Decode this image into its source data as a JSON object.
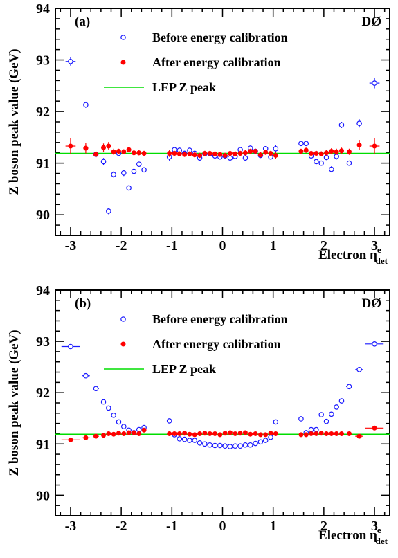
{
  "chart_data": [
    {
      "type": "scatter",
      "panel_label": "(a)",
      "experiment_label": "DØ",
      "xlabel": "Electron η",
      "xlabel_sup": "e",
      "xlabel_sub": "det",
      "ylabel": "Z boson peak value (GeV)",
      "xlim": [
        -3.3,
        3.3
      ],
      "ylim": [
        89.6,
        94
      ],
      "x_ticks": [
        "-3",
        "-2",
        "-1",
        "0",
        "1",
        "2",
        "3"
      ],
      "y_ticks": [
        "90",
        "91",
        "92",
        "93",
        "94"
      ],
      "legend": [
        {
          "label": "Before energy calibration",
          "marker": "open-circle",
          "color": "#1a1aff"
        },
        {
          "label": "After energy calibration",
          "marker": "filled-circle",
          "color": "#ff0000"
        },
        {
          "label": "LEP Z peak",
          "marker": "line",
          "color": "#00dd00"
        }
      ],
      "lep_peak": 91.19,
      "series": [
        {
          "name": "Before energy calibration",
          "color": "#1a1aff",
          "marker": "open",
          "x": [
            -3.0,
            -2.7,
            -2.5,
            -2.35,
            -2.25,
            -2.15,
            -2.05,
            -1.95,
            -1.85,
            -1.75,
            -1.65,
            -1.55,
            -1.05,
            -0.95,
            -0.85,
            -0.75,
            -0.65,
            -0.55,
            -0.45,
            -0.35,
            -0.25,
            -0.15,
            -0.05,
            0.05,
            0.15,
            0.25,
            0.35,
            0.45,
            0.55,
            0.65,
            0.75,
            0.85,
            0.95,
            1.05,
            1.55,
            1.65,
            1.75,
            1.85,
            1.95,
            2.05,
            2.15,
            2.25,
            2.35,
            2.5,
            2.7,
            3.0
          ],
          "y": [
            92.97,
            92.13,
            91.17,
            91.03,
            90.07,
            90.78,
            91.19,
            90.81,
            90.52,
            90.84,
            90.98,
            90.87,
            91.12,
            91.26,
            91.25,
            91.19,
            91.25,
            91.19,
            91.1,
            91.18,
            91.18,
            91.14,
            91.12,
            91.14,
            91.1,
            91.13,
            91.26,
            91.1,
            91.29,
            91.23,
            91.15,
            91.28,
            91.12,
            91.28,
            91.38,
            91.38,
            91.14,
            91.03,
            91.0,
            91.11,
            90.88,
            91.13,
            91.74,
            91.0,
            91.77,
            92.55
          ],
          "err": [
            0.08,
            0.06,
            0.05,
            0.07,
            0.06,
            0.06,
            0.05,
            0.06,
            0.05,
            0.05,
            0.05,
            0.05,
            0.07,
            0.05,
            0.05,
            0.05,
            0.05,
            0.05,
            0.05,
            0.05,
            0.05,
            0.05,
            0.05,
            0.05,
            0.05,
            0.05,
            0.05,
            0.05,
            0.05,
            0.05,
            0.05,
            0.05,
            0.05,
            0.07,
            0.05,
            0.05,
            0.05,
            0.05,
            0.05,
            0.05,
            0.06,
            0.06,
            0.06,
            0.05,
            0.08,
            0.1
          ],
          "xerr": [
            0.1,
            0.05,
            0.05,
            0,
            0,
            0,
            0,
            0,
            0,
            0,
            0,
            0,
            0,
            0,
            0,
            0,
            0,
            0,
            0,
            0,
            0,
            0,
            0,
            0,
            0,
            0,
            0,
            0,
            0,
            0,
            0,
            0,
            0,
            0,
            0,
            0,
            0,
            0,
            0,
            0,
            0,
            0,
            0,
            0.05,
            0.05,
            0.1
          ]
        },
        {
          "name": "After energy calibration",
          "color": "#ff0000",
          "marker": "filled",
          "x": [
            -3.0,
            -2.7,
            -2.5,
            -2.35,
            -2.25,
            -2.15,
            -2.05,
            -1.95,
            -1.85,
            -1.75,
            -1.65,
            -1.55,
            -1.05,
            -0.95,
            -0.85,
            -0.75,
            -0.65,
            -0.55,
            -0.45,
            -0.35,
            -0.25,
            -0.15,
            -0.05,
            0.05,
            0.15,
            0.25,
            0.35,
            0.45,
            0.55,
            0.65,
            0.75,
            0.85,
            0.95,
            1.05,
            1.55,
            1.65,
            1.75,
            1.85,
            1.95,
            2.05,
            2.15,
            2.25,
            2.35,
            2.5,
            2.7,
            3.0
          ],
          "y": [
            91.33,
            91.29,
            91.17,
            91.3,
            91.33,
            91.22,
            91.23,
            91.22,
            91.26,
            91.2,
            91.2,
            91.19,
            91.19,
            91.19,
            91.18,
            91.17,
            91.18,
            91.16,
            91.15,
            91.19,
            91.19,
            91.18,
            91.17,
            91.15,
            91.19,
            91.18,
            91.19,
            91.2,
            91.23,
            91.23,
            91.16,
            91.21,
            91.19,
            91.15,
            91.23,
            91.25,
            91.19,
            91.19,
            91.18,
            91.2,
            91.23,
            91.22,
            91.24,
            91.22,
            91.35,
            91.33
          ],
          "err": [
            0.15,
            0.1,
            0.06,
            0.08,
            0.08,
            0.06,
            0.05,
            0.05,
            0.05,
            0.05,
            0.05,
            0.05,
            0.07,
            0.05,
            0.05,
            0.05,
            0.05,
            0.05,
            0.05,
            0.05,
            0.05,
            0.05,
            0.05,
            0.05,
            0.05,
            0.05,
            0.05,
            0.05,
            0.05,
            0.05,
            0.05,
            0.05,
            0.05,
            0.07,
            0.05,
            0.05,
            0.05,
            0.05,
            0.05,
            0.05,
            0.06,
            0.06,
            0.06,
            0.06,
            0.1,
            0.15
          ],
          "xerr": [
            0.1,
            0.05,
            0.05,
            0,
            0,
            0,
            0,
            0,
            0,
            0,
            0,
            0,
            0,
            0,
            0,
            0,
            0,
            0,
            0,
            0,
            0,
            0,
            0,
            0,
            0,
            0,
            0,
            0,
            0,
            0,
            0,
            0,
            0,
            0,
            0,
            0,
            0,
            0,
            0,
            0,
            0,
            0,
            0,
            0,
            0.05,
            0.1
          ]
        }
      ]
    },
    {
      "type": "scatter",
      "panel_label": "(b)",
      "experiment_label": "DØ",
      "xlabel": "Electron η",
      "xlabel_sup": "e",
      "xlabel_sub": "det",
      "ylabel": "Z boson peak value (GeV)",
      "xlim": [
        -3.3,
        3.3
      ],
      "ylim": [
        89.6,
        94
      ],
      "x_ticks": [
        "-3",
        "-2",
        "-1",
        "0",
        "1",
        "2",
        "3"
      ],
      "y_ticks": [
        "90",
        "91",
        "92",
        "93",
        "94"
      ],
      "legend": [
        {
          "label": "Before energy calibration",
          "marker": "open-circle",
          "color": "#1a1aff"
        },
        {
          "label": "After energy calibration",
          "marker": "filled-circle",
          "color": "#ff0000"
        },
        {
          "label": "LEP Z peak",
          "marker": "line",
          "color": "#00dd00"
        }
      ],
      "lep_peak": 91.19,
      "series": [
        {
          "name": "Before energy calibration",
          "color": "#1a1aff",
          "marker": "open",
          "x": [
            -3.0,
            -2.7,
            -2.5,
            -2.35,
            -2.25,
            -2.15,
            -2.05,
            -1.95,
            -1.85,
            -1.75,
            -1.65,
            -1.55,
            -1.05,
            -0.95,
            -0.85,
            -0.75,
            -0.65,
            -0.55,
            -0.45,
            -0.35,
            -0.25,
            -0.15,
            -0.05,
            0.05,
            0.15,
            0.25,
            0.35,
            0.45,
            0.55,
            0.65,
            0.75,
            0.85,
            0.95,
            1.05,
            1.55,
            1.65,
            1.75,
            1.85,
            1.95,
            2.05,
            2.15,
            2.25,
            2.35,
            2.5,
            2.7,
            3.0
          ],
          "y": [
            92.9,
            92.33,
            92.08,
            91.82,
            91.7,
            91.56,
            91.43,
            91.34,
            91.27,
            91.22,
            91.28,
            91.32,
            91.45,
            91.18,
            91.1,
            91.09,
            91.07,
            91.07,
            91.02,
            91.0,
            90.98,
            90.97,
            90.97,
            90.96,
            90.95,
            90.96,
            90.96,
            90.98,
            90.98,
            91.01,
            91.04,
            91.07,
            91.13,
            91.43,
            91.49,
            91.22,
            91.28,
            91.28,
            91.57,
            91.44,
            91.58,
            91.72,
            91.84,
            92.12,
            92.45,
            92.95
          ],
          "err": [
            0.02,
            0.02,
            0.02,
            0.02,
            0.02,
            0.02,
            0.02,
            0.02,
            0.02,
            0.02,
            0.02,
            0.02,
            0.02,
            0.02,
            0.02,
            0.02,
            0.02,
            0.02,
            0.02,
            0.02,
            0.02,
            0.02,
            0.02,
            0.02,
            0.02,
            0.02,
            0.02,
            0.02,
            0.02,
            0.02,
            0.02,
            0.02,
            0.02,
            0.02,
            0.02,
            0.02,
            0.02,
            0.02,
            0.02,
            0.02,
            0.02,
            0.02,
            0.02,
            0.02,
            0.02,
            0.02
          ],
          "xerr": [
            0.18,
            0.08,
            0.06,
            0,
            0,
            0,
            0,
            0,
            0,
            0,
            0,
            0,
            0,
            0,
            0,
            0,
            0,
            0,
            0,
            0,
            0,
            0,
            0,
            0,
            0,
            0,
            0,
            0,
            0,
            0,
            0,
            0,
            0,
            0,
            0,
            0,
            0,
            0,
            0,
            0,
            0,
            0,
            0,
            0.06,
            0.08,
            0.18
          ]
        },
        {
          "name": "After energy calibration",
          "color": "#ff0000",
          "marker": "filled",
          "x": [
            -3.0,
            -2.7,
            -2.5,
            -2.35,
            -2.25,
            -2.15,
            -2.05,
            -1.95,
            -1.85,
            -1.75,
            -1.65,
            -1.55,
            -1.05,
            -0.95,
            -0.85,
            -0.75,
            -0.65,
            -0.55,
            -0.45,
            -0.35,
            -0.25,
            -0.15,
            -0.05,
            0.05,
            0.15,
            0.25,
            0.35,
            0.45,
            0.55,
            0.65,
            0.75,
            0.85,
            0.95,
            1.05,
            1.55,
            1.65,
            1.75,
            1.85,
            1.95,
            2.05,
            2.15,
            2.25,
            2.35,
            2.5,
            2.7,
            3.0
          ],
          "y": [
            91.08,
            91.12,
            91.15,
            91.17,
            91.2,
            91.19,
            91.21,
            91.2,
            91.22,
            91.22,
            91.2,
            91.27,
            91.2,
            91.2,
            91.2,
            91.21,
            91.19,
            91.18,
            91.2,
            91.21,
            91.2,
            91.2,
            91.18,
            91.21,
            91.22,
            91.2,
            91.21,
            91.22,
            91.19,
            91.2,
            91.18,
            91.18,
            91.21,
            91.2,
            91.18,
            91.18,
            91.2,
            91.2,
            91.21,
            91.2,
            91.2,
            91.2,
            91.2,
            91.2,
            91.15,
            91.31
          ],
          "err": [
            0.02,
            0.02,
            0.02,
            0.02,
            0.02,
            0.02,
            0.02,
            0.02,
            0.02,
            0.02,
            0.02,
            0.02,
            0.02,
            0.02,
            0.02,
            0.02,
            0.02,
            0.02,
            0.02,
            0.02,
            0.02,
            0.02,
            0.02,
            0.02,
            0.02,
            0.02,
            0.02,
            0.02,
            0.02,
            0.02,
            0.02,
            0.02,
            0.02,
            0.02,
            0.02,
            0.02,
            0.02,
            0.02,
            0.02,
            0.02,
            0.02,
            0.02,
            0.02,
            0.02,
            0.02,
            0.02
          ],
          "xerr": [
            0.18,
            0.08,
            0.06,
            0,
            0,
            0,
            0,
            0,
            0,
            0,
            0,
            0,
            0,
            0,
            0,
            0,
            0,
            0,
            0,
            0,
            0,
            0,
            0,
            0,
            0,
            0,
            0,
            0,
            0,
            0,
            0,
            0,
            0,
            0,
            0,
            0,
            0,
            0,
            0,
            0,
            0,
            0,
            0,
            0,
            0.08,
            0.18
          ]
        }
      ]
    }
  ]
}
